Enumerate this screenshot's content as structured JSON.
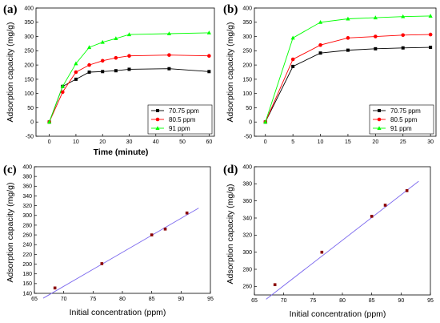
{
  "chart_data": [
    {
      "id": "a",
      "panel_label": "(a)",
      "type": "line",
      "xlabel": "Time (minute)",
      "ylabel": "Adsorption capacity (mg/g)",
      "xlim": [
        -5,
        62
      ],
      "ylim": [
        -50,
        400
      ],
      "xticks": [
        0,
        10,
        20,
        30,
        40,
        50,
        60
      ],
      "yticks": [
        -50,
        0,
        50,
        100,
        150,
        200,
        250,
        300,
        350,
        400
      ],
      "x": [
        0,
        5,
        10,
        15,
        20,
        25,
        30,
        45,
        60
      ],
      "series": [
        {
          "name": "70.75 ppm",
          "color": "#000000",
          "marker": "square",
          "values": [
            0,
            125,
            150,
            175,
            177,
            180,
            185,
            187,
            177
          ]
        },
        {
          "name": "80.5 ppm",
          "color": "#ff0000",
          "marker": "circle",
          "values": [
            0,
            105,
            175,
            200,
            215,
            225,
            232,
            235,
            232
          ]
        },
        {
          "name": "91 ppm",
          "color": "#00ff00",
          "marker": "triangle",
          "values": [
            0,
            125,
            205,
            262,
            280,
            293,
            307,
            310,
            313
          ]
        }
      ],
      "legend_position": "bottom-right"
    },
    {
      "id": "b",
      "panel_label": "(b)",
      "type": "line",
      "xlabel": "",
      "ylabel": "Adsorption capacity (mg/g)",
      "xlim": [
        -2,
        31
      ],
      "ylim": [
        -50,
        400
      ],
      "xticks": [
        0,
        5,
        10,
        15,
        20,
        25,
        30
      ],
      "yticks": [
        -50,
        0,
        50,
        100,
        150,
        200,
        250,
        300,
        350,
        400
      ],
      "x": [
        0,
        5,
        10,
        15,
        20,
        25,
        30
      ],
      "series": [
        {
          "name": "70.75 ppm",
          "color": "#000000",
          "marker": "square",
          "values": [
            0,
            195,
            242,
            252,
            257,
            260,
            262
          ]
        },
        {
          "name": "80.5 ppm",
          "color": "#ff0000",
          "marker": "circle",
          "values": [
            0,
            220,
            270,
            295,
            300,
            305,
            307
          ]
        },
        {
          "name": "91 ppm",
          "color": "#00ff00",
          "marker": "triangle",
          "values": [
            0,
            295,
            350,
            362,
            366,
            370,
            372
          ]
        }
      ],
      "legend_position": "bottom-right"
    },
    {
      "id": "c",
      "panel_label": "(c)",
      "type": "scatter",
      "xlabel": "Initial concentration (ppm)",
      "ylabel": "Adsorption capacity (mg/g)",
      "xlim": [
        65,
        95
      ],
      "ylim": [
        140,
        400
      ],
      "xticks": [
        65,
        70,
        75,
        80,
        85,
        90,
        95
      ],
      "yticks": [
        140,
        160,
        180,
        200,
        220,
        240,
        260,
        280,
        300,
        320,
        340,
        360,
        380,
        400
      ],
      "x": [
        68.5,
        76.5,
        85,
        87.3,
        91
      ],
      "values": [
        151,
        201,
        260,
        272,
        305
      ],
      "fit_line": {
        "x": [
          66.5,
          93
        ],
        "y": [
          130,
          315
        ],
        "color": "#7b68ee"
      },
      "marker_color": "#8b0000"
    },
    {
      "id": "d",
      "panel_label": "(d)",
      "type": "scatter",
      "xlabel": "Initial concentration (ppm)",
      "ylabel": "Adsorption capacity (mg/g)",
      "xlim": [
        65,
        95
      ],
      "ylim": [
        250,
        400
      ],
      "xticks": [
        65,
        70,
        75,
        80,
        85,
        90,
        95
      ],
      "yticks": [
        260,
        280,
        300,
        320,
        340,
        360,
        380,
        400
      ],
      "x": [
        68.5,
        76.5,
        85,
        87.3,
        91
      ],
      "values": [
        262,
        300,
        342,
        355,
        372
      ],
      "fit_line": {
        "x": [
          67,
          93
        ],
        "y": [
          245,
          383
        ],
        "color": "#7b68ee"
      },
      "marker_color": "#8b0000"
    }
  ]
}
